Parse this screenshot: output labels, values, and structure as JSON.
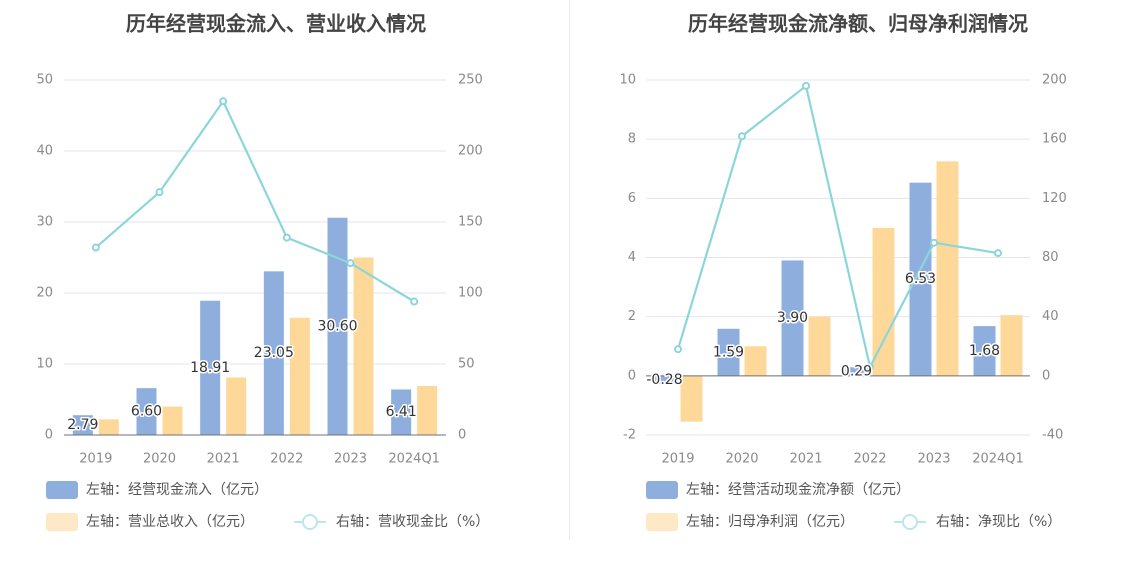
{
  "chart_data": [
    {
      "type": "bar",
      "title": "历年经营现金流入、营业收入情况",
      "categories": [
        "2019",
        "2020",
        "2021",
        "2022",
        "2023",
        "2024Q1"
      ],
      "y_left": {
        "ylim": [
          0,
          50
        ],
        "ticks": [
          "0",
          "10",
          "20",
          "30",
          "40",
          "50"
        ]
      },
      "y_right": {
        "ylim": [
          0,
          250
        ],
        "ticks": [
          "0",
          "50",
          "100",
          "150",
          "200",
          "250"
        ]
      },
      "series": [
        {
          "name": "左轴：经营现金流入（亿元）",
          "kind": "bar",
          "axis": "left",
          "color": "#8eaedd",
          "values": [
            2.79,
            6.6,
            18.91,
            23.05,
            30.6,
            6.41
          ],
          "labels": [
            "2.79",
            "6.60",
            "18.91",
            "23.05",
            "30.60",
            "6.41"
          ]
        },
        {
          "name": "左轴：营业总收入（亿元）",
          "kind": "bar",
          "axis": "left",
          "color": "#fdd899",
          "values": [
            2.2,
            4.0,
            8.1,
            16.5,
            25.0,
            6.9
          ]
        },
        {
          "name": "右轴：营收现金比（%）",
          "kind": "line",
          "axis": "right",
          "color": "#8ad6da",
          "values": [
            132,
            171,
            235,
            139,
            121,
            94
          ]
        }
      ],
      "legend_position": "bottom"
    },
    {
      "type": "bar",
      "title": "历年经营现金流净额、归母净利润情况",
      "categories": [
        "2019",
        "2020",
        "2021",
        "2022",
        "2023",
        "2024Q1"
      ],
      "y_left": {
        "ylim": [
          -2,
          10
        ],
        "ticks": [
          "-2",
          "0",
          "2",
          "4",
          "6",
          "8",
          "10"
        ]
      },
      "y_right": {
        "ylim": [
          -40,
          200
        ],
        "ticks": [
          "-40",
          "0",
          "40",
          "80",
          "120",
          "160",
          "200"
        ]
      },
      "series": [
        {
          "name": "左轴：经营活动现金流净额（亿元）",
          "kind": "bar",
          "axis": "left",
          "color": "#8eaedd",
          "values": [
            -0.28,
            1.59,
            3.9,
            0.29,
            6.53,
            1.68
          ],
          "labels": [
            "-0.28",
            "1.59",
            "3.90",
            "0.29",
            "6.53",
            "1.68"
          ]
        },
        {
          "name": "左轴：归母净利润（亿元）",
          "kind": "bar",
          "axis": "left",
          "color": "#fdd899",
          "values": [
            -1.55,
            1.0,
            2.0,
            5.0,
            7.25,
            2.05
          ]
        },
        {
          "name": "右轴：净现比（%）",
          "kind": "line",
          "axis": "right",
          "color": "#8ad6da",
          "values": [
            18,
            162,
            196,
            6,
            90,
            83
          ]
        }
      ],
      "legend_position": "bottom"
    }
  ]
}
